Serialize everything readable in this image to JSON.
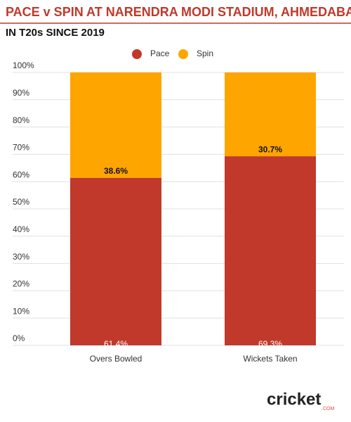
{
  "chart_data": {
    "type": "stacked_bar",
    "title": "PACE v SPIN AT NARENDRA MODI STADIUM, AHMEDABAD",
    "subtitle": "IN T20s SINCE 2019",
    "categories": [
      "Overs Bowled",
      "Wickets Taken"
    ],
    "series": [
      {
        "name": "Pace",
        "color": "#c0392b",
        "values": [
          61.4,
          69.3
        ],
        "value_labels": [
          "61.4%",
          "69.3%"
        ]
      },
      {
        "name": "Spin",
        "color": "#ffa500",
        "values": [
          38.6,
          30.7
        ],
        "value_labels": [
          "38.6%",
          "30.7%"
        ]
      }
    ],
    "ylim": [
      0,
      100
    ],
    "yticks": [
      {
        "value": 0,
        "label": "0%"
      },
      {
        "value": 10,
        "label": "10%"
      },
      {
        "value": 20,
        "label": "20%"
      },
      {
        "value": 30,
        "label": "30%"
      },
      {
        "value": 40,
        "label": "40%"
      },
      {
        "value": 50,
        "label": "50%"
      },
      {
        "value": 60,
        "label": "60%"
      },
      {
        "value": 70,
        "label": "70%"
      },
      {
        "value": 80,
        "label": "80%"
      },
      {
        "value": 90,
        "label": "90%"
      },
      {
        "value": 100,
        "label": "100%"
      }
    ],
    "grid": true,
    "legend": "top"
  },
  "logo": {
    "text": "cricket",
    "sub": ".COM"
  }
}
